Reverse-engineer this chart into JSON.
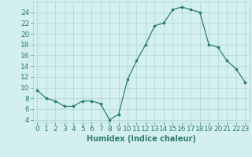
{
  "x": [
    0,
    1,
    2,
    3,
    4,
    5,
    6,
    7,
    8,
    9,
    10,
    11,
    12,
    13,
    14,
    15,
    16,
    17,
    18,
    19,
    20,
    21,
    22,
    23
  ],
  "y": [
    9.5,
    8.0,
    7.5,
    6.5,
    6.5,
    7.5,
    7.5,
    7.0,
    4.0,
    5.0,
    11.5,
    15.0,
    18.0,
    21.5,
    22.0,
    24.5,
    25.0,
    24.5,
    24.0,
    18.0,
    17.5,
    15.0,
    13.5,
    11.0
  ],
  "line_color": "#2d7d6e",
  "marker_color": "#2d7d6e",
  "bg_color": "#d4efef",
  "grid_color": "#aed4d4",
  "tick_color": "#2d7d6e",
  "xlabel": "Humidex (Indice chaleur)",
  "xlabel_color": "#2d7d6e",
  "xlim": [
    -0.5,
    23.5
  ],
  "ylim": [
    3.5,
    26
  ],
  "yticks": [
    4,
    6,
    8,
    10,
    12,
    14,
    16,
    18,
    20,
    22,
    24
  ],
  "xtick_labels": [
    "0",
    "1",
    "2",
    "3",
    "4",
    "5",
    "6",
    "7",
    "8",
    "9",
    "10",
    "11",
    "12",
    "13",
    "14",
    "15",
    "16",
    "17",
    "18",
    "19",
    "20",
    "21",
    "22",
    "23"
  ],
  "font_size_label": 7,
  "font_size_tick": 6.5
}
